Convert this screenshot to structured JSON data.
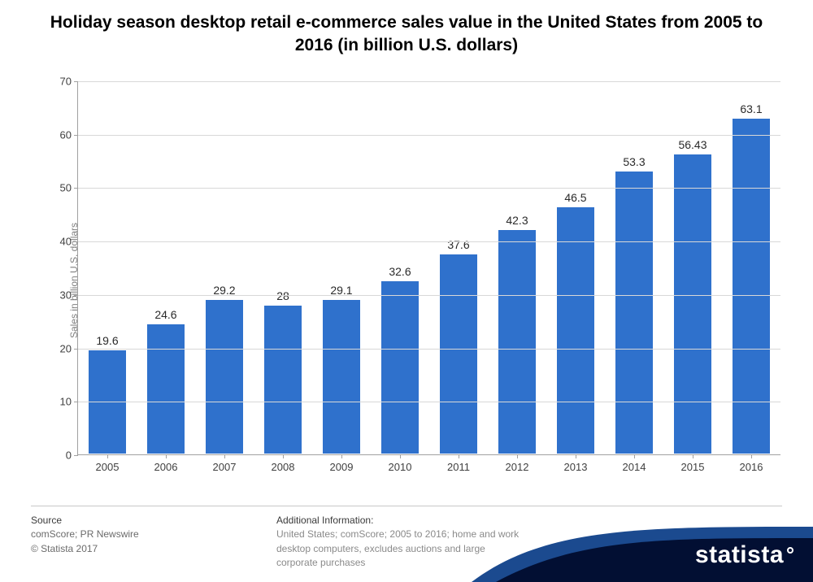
{
  "title": "Holiday season desktop retail e-commerce sales value in the United States from 2005 to 2016 (in billion U.S. dollars)",
  "title_fontsize": 21,
  "chart": {
    "type": "bar",
    "categories": [
      "2005",
      "2006",
      "2007",
      "2008",
      "2009",
      "2010",
      "2011",
      "2012",
      "2013",
      "2014",
      "2015",
      "2016"
    ],
    "values": [
      19.6,
      24.6,
      29.2,
      28,
      29.1,
      32.6,
      37.6,
      42.3,
      46.5,
      53.3,
      56.43,
      63.1
    ],
    "value_labels": [
      "19.6",
      "24.6",
      "29.2",
      "28",
      "29.1",
      "32.6",
      "37.6",
      "42.3",
      "46.5",
      "53.3",
      "56.43",
      "63.1"
    ],
    "bar_color": "#2f71cc",
    "bar_border_color": "#ffffff",
    "ylabel": "Sales in billion U.S. dollars",
    "ylim": [
      0,
      70
    ],
    "ytick_step": 10,
    "grid_color": "#d8d8d8",
    "axis_color": "#a0a0a0",
    "tick_label_color": "#404040",
    "value_label_fontsize": 14,
    "tick_label_fontsize": 13,
    "background_color": "#ffffff",
    "bar_width_ratio": 0.66
  },
  "footer": {
    "source_heading": "Source",
    "source_text": "comScore; PR Newswire",
    "copyright": "© Statista 2017",
    "additional_heading": "Additional Information:",
    "additional_text": "United States; comScore; 2005 to 2016; home and work desktop computers, excludes auctions and large corporate purchases",
    "logo_text": "statista",
    "swoosh_dark": "#020f33",
    "swoosh_light": "#1b4a8f"
  }
}
